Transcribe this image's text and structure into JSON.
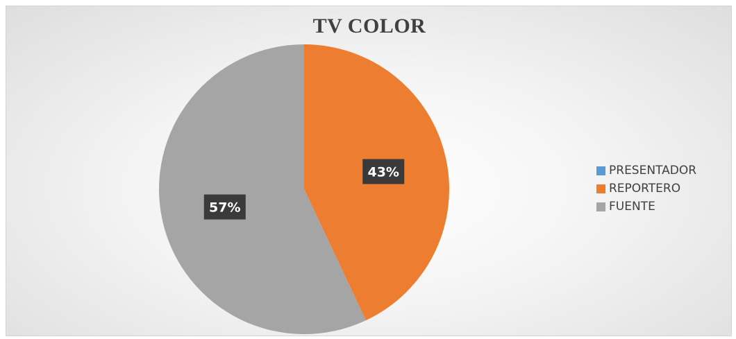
{
  "chart_data": {
    "type": "pie",
    "title": "TV COLOR",
    "categories": [
      "PRESENTADOR",
      "REPORTERO",
      "FUENTE"
    ],
    "values": [
      0,
      43,
      57
    ],
    "data_labels": [
      "",
      "43%",
      "57%"
    ],
    "colors": [
      "#5b9bd5",
      "#ed7d31",
      "#a5a5a5"
    ],
    "legend_position": "right"
  }
}
